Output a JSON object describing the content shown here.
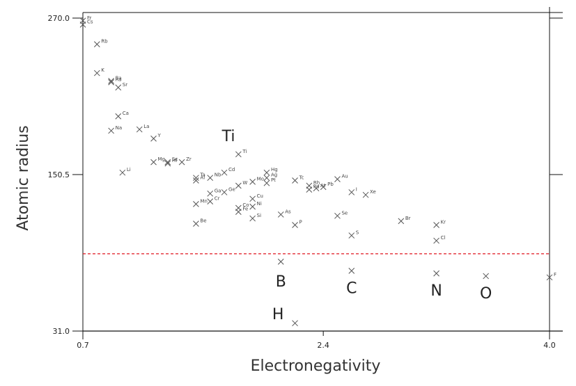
{
  "chart_data": {
    "type": "scatter",
    "xlabel": "Electronegativity",
    "ylabel": "Atomic radius",
    "xlim": [
      0.7,
      4.0
    ],
    "ylim": [
      31.0,
      270.0
    ],
    "x_ticks": [
      "0.7",
      "2.4",
      "4.0"
    ],
    "y_ticks": [
      "31.0",
      "150.5",
      "270.0"
    ],
    "x_tick_values": [
      0.7,
      2.4,
      4.0
    ],
    "y_tick_values": [
      31.0,
      150.5,
      270.0
    ],
    "threshold_line": {
      "y": 90,
      "color": "#e0141e",
      "style": "dashed"
    },
    "grid": false,
    "legend": "none",
    "marker_color": "#555555",
    "points": [
      {
        "x": 0.7,
        "y": 268,
        "label": "Fr"
      },
      {
        "x": 0.7,
        "y": 265,
        "label": "Cs"
      },
      {
        "x": 0.8,
        "y": 250,
        "label": "Rb"
      },
      {
        "x": 0.8,
        "y": 228,
        "label": "K"
      },
      {
        "x": 0.9,
        "y": 222,
        "label": "Ba"
      },
      {
        "x": 0.9,
        "y": 221,
        "label": "Ra"
      },
      {
        "x": 0.95,
        "y": 217,
        "label": "Sr"
      },
      {
        "x": 0.95,
        "y": 195,
        "label": "Ca"
      },
      {
        "x": 0.9,
        "y": 184,
        "label": "Na"
      },
      {
        "x": 1.1,
        "y": 185,
        "label": "La"
      },
      {
        "x": 1.2,
        "y": 178,
        "label": "Y"
      },
      {
        "x": 0.98,
        "y": 152,
        "label": "Li"
      },
      {
        "x": 1.2,
        "y": 160,
        "label": "Mg"
      },
      {
        "x": 1.3,
        "y": 160,
        "label": "Sc"
      },
      {
        "x": 1.3,
        "y": 159,
        "label": "Hf"
      },
      {
        "x": 1.4,
        "y": 160,
        "label": "Zr"
      },
      {
        "x": 1.5,
        "y": 148,
        "label": "Ta"
      },
      {
        "x": 1.5,
        "y": 146,
        "label": "Al"
      },
      {
        "x": 1.6,
        "y": 148,
        "label": "Nb"
      },
      {
        "x": 1.7,
        "y": 152,
        "label": "Cd"
      },
      {
        "x": 1.8,
        "y": 166,
        "label": "Ti"
      },
      {
        "x": 1.5,
        "y": 128,
        "label": "Mn"
      },
      {
        "x": 1.6,
        "y": 130,
        "label": "Cr"
      },
      {
        "x": 1.5,
        "y": 113,
        "label": "Be"
      },
      {
        "x": 1.6,
        "y": 136,
        "label": "Ga"
      },
      {
        "x": 1.7,
        "y": 137,
        "label": "Ge"
      },
      {
        "x": 1.8,
        "y": 142,
        "label": "W"
      },
      {
        "x": 1.9,
        "y": 145,
        "label": "Mo"
      },
      {
        "x": 2.0,
        "y": 152,
        "label": "Hg"
      },
      {
        "x": 2.0,
        "y": 148,
        "label": "Ag"
      },
      {
        "x": 2.0,
        "y": 144,
        "label": "Pt"
      },
      {
        "x": 1.9,
        "y": 126,
        "label": "Ni"
      },
      {
        "x": 1.8,
        "y": 125,
        "label": "Co"
      },
      {
        "x": 1.8,
        "y": 122,
        "label": "Fe"
      },
      {
        "x": 1.9,
        "y": 132,
        "label": "Cu"
      },
      {
        "x": 1.9,
        "y": 117,
        "label": "Si"
      },
      {
        "x": 2.1,
        "y": 120,
        "label": "As"
      },
      {
        "x": 2.2,
        "y": 112,
        "label": "P"
      },
      {
        "x": 2.2,
        "y": 146,
        "label": "Tc"
      },
      {
        "x": 2.3,
        "y": 142,
        "label": "Rh"
      },
      {
        "x": 2.3,
        "y": 139,
        "label": "Pd"
      },
      {
        "x": 2.35,
        "y": 140,
        "label": "At"
      },
      {
        "x": 2.4,
        "y": 141,
        "label": "Pb"
      },
      {
        "x": 2.5,
        "y": 147,
        "label": "Au"
      },
      {
        "x": 2.5,
        "y": 119,
        "label": "Se"
      },
      {
        "x": 2.6,
        "y": 137,
        "label": "I"
      },
      {
        "x": 2.7,
        "y": 135,
        "label": "Xe"
      },
      {
        "x": 2.6,
        "y": 104,
        "label": "S"
      },
      {
        "x": 2.95,
        "y": 115,
        "label": "Br"
      },
      {
        "x": 3.2,
        "y": 112,
        "label": "Kr"
      },
      {
        "x": 3.2,
        "y": 100,
        "label": "Cl"
      },
      {
        "x": 2.1,
        "y": 84,
        "label": ""
      },
      {
        "x": 2.6,
        "y": 77,
        "label": ""
      },
      {
        "x": 3.2,
        "y": 75,
        "label": ""
      },
      {
        "x": 3.55,
        "y": 73,
        "label": ""
      },
      {
        "x": 4.0,
        "y": 72,
        "label": "F"
      },
      {
        "x": 2.2,
        "y": 37,
        "label": ""
      }
    ],
    "annotations": [
      {
        "text": "Ti",
        "x": 1.73,
        "y": 176
      },
      {
        "text": "B",
        "x": 2.1,
        "y": 65
      },
      {
        "text": "C",
        "x": 2.6,
        "y": 60
      },
      {
        "text": "N",
        "x": 3.2,
        "y": 58
      },
      {
        "text": "O",
        "x": 3.55,
        "y": 56
      },
      {
        "text": "H",
        "x": 2.08,
        "y": 40
      }
    ]
  }
}
